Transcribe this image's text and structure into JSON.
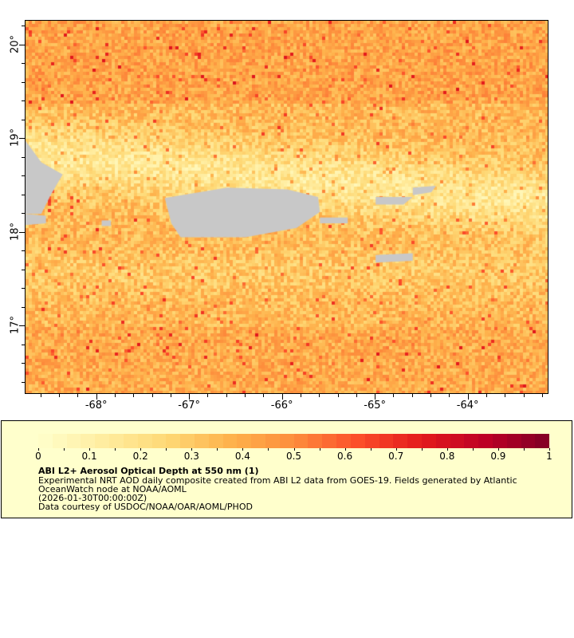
{
  "map": {
    "lat_ticks": [
      "20°",
      "19°",
      "18°",
      "17°"
    ],
    "lat_values": [
      20,
      19,
      18,
      17
    ],
    "lon_ticks": [
      "-68°",
      "-67°",
      "-66°",
      "-65°",
      "-64°"
    ],
    "lon_values": [
      -68,
      -67,
      -66,
      -65,
      -64
    ],
    "lon_range": [
      -68.77,
      -63.13
    ],
    "lat_range": [
      16.27,
      20.26
    ],
    "land_color": "#c8c8c8",
    "nodata_color": "#808080"
  },
  "legend": {
    "colorbar_labels": [
      "0",
      "0.1",
      "0.2",
      "0.3",
      "0.4",
      "0.5",
      "0.6",
      "0.7",
      "0.8",
      "0.9",
      "1"
    ],
    "colorbar_range": [
      0,
      1
    ],
    "colormap": [
      "#ffffcc",
      "#ffeda0",
      "#fed976",
      "#feb24c",
      "#fd8d3c",
      "#fc4e2a",
      "#e31a1c",
      "#bd0026",
      "#800026"
    ],
    "title": "ABI L2+ Aerosol Optical Depth at 550 nm (1)",
    "description_line1": "Experimental NRT AOD daily composite created from ABI L2 data from GOES-19. Fields generated by Atlantic",
    "description_line2": "OceanWatch node at NOAA/AOML",
    "time": "(2026-01-30T00:00:00Z)",
    "credit": "Data courtesy of USDOC/NOAA/OAR/AOML/PHOD"
  }
}
